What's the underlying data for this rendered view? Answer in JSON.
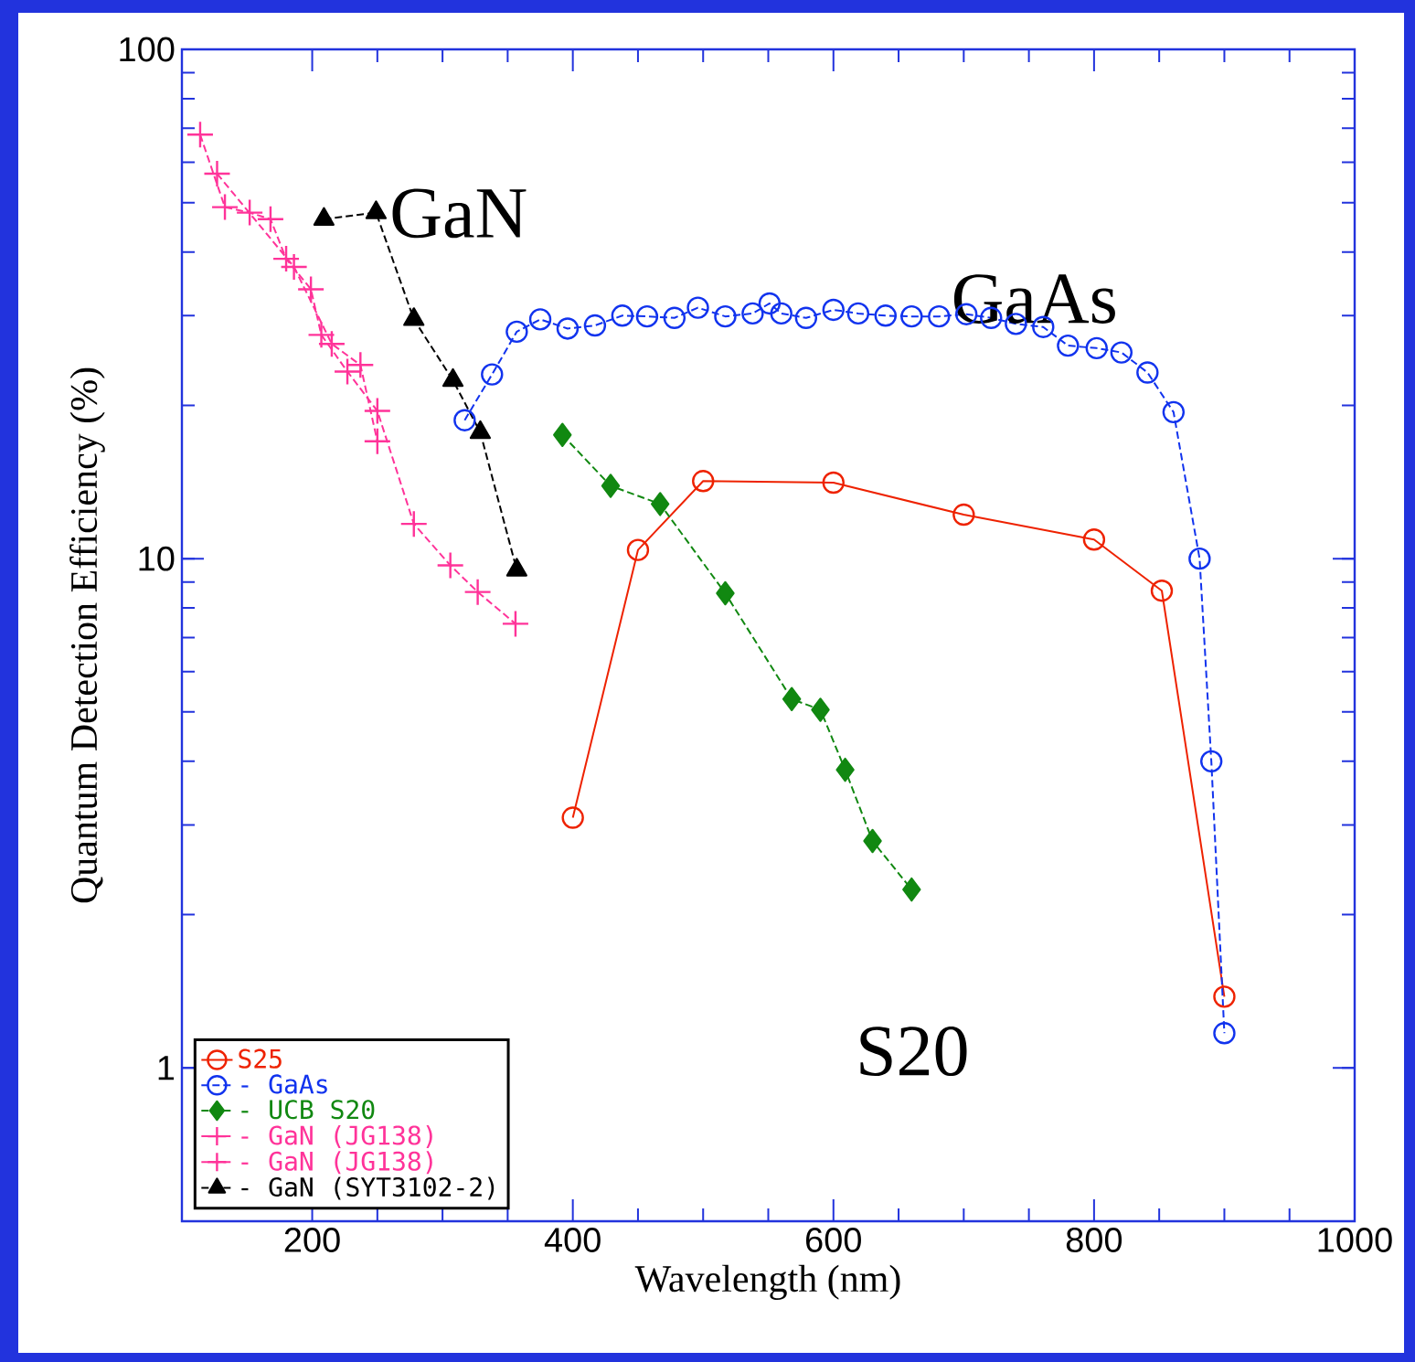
{
  "chart_data": {
    "type": "line",
    "xlabel": "Wavelength (nm)",
    "ylabel": "Quantum Detection Efficiency (%)",
    "log": "y",
    "xlim": [
      100,
      1000
    ],
    "ylim": [
      0.5,
      100
    ],
    "xticks": [
      200,
      400,
      600,
      800,
      1000
    ],
    "yticks": [
      1,
      10,
      100
    ],
    "legend": "bottom left",
    "series": [
      {
        "name": "S25",
        "color": "#ee2200",
        "marker": "circle",
        "line_style": "solid",
        "x": [
          400,
          450,
          500,
          600,
          700,
          800,
          852,
          900
        ],
        "values": [
          3.1,
          10.4,
          14.2,
          14.1,
          12.2,
          10.9,
          8.65,
          1.38
        ]
      },
      {
        "name": "- GaAs",
        "color": "#1133ee",
        "marker": "circle",
        "line_style": "dashed",
        "x": [
          317,
          338,
          357,
          375,
          396,
          417,
          438,
          457,
          478,
          496,
          517,
          538,
          551,
          560,
          579,
          600,
          619,
          640,
          660,
          681,
          702,
          721,
          740,
          761,
          780,
          802,
          821,
          841,
          861,
          881,
          890,
          900
        ],
        "values": [
          18.7,
          23,
          27.9,
          29.5,
          28.3,
          28.7,
          30,
          29.9,
          29.7,
          31.1,
          29.9,
          30.3,
          31.7,
          30.3,
          29.7,
          30.8,
          30.3,
          30,
          29.9,
          29.9,
          30.2,
          29.7,
          28.9,
          28.5,
          26.2,
          25.9,
          25.4,
          23.2,
          19.4,
          10,
          4.0,
          1.17
        ]
      },
      {
        "name": "- UCB S20",
        "color": "#118811",
        "marker": "diamond",
        "line_style": "dashed",
        "x": [
          392,
          429,
          467,
          517,
          568,
          590,
          609,
          630,
          660
        ],
        "values": [
          17.5,
          13.9,
          12.8,
          8.55,
          5.3,
          5.05,
          3.85,
          2.79,
          2.24
        ]
      },
      {
        "name": "- GaN (JG138)",
        "color": "#ff3399",
        "marker": "cross",
        "line_style": "dashed",
        "x": [
          114,
          133,
          152,
          168,
          180,
          199,
          207,
          227,
          250,
          278,
          306,
          327,
          356
        ],
        "values": [
          68,
          49,
          47.8,
          46.4,
          38.8,
          33.8,
          27.5,
          23.3,
          19.5,
          11.7,
          9.7,
          8.6,
          7.45
        ]
      },
      {
        "name": "- GaN (JG138)",
        "color": "#ff3399",
        "marker": "cross",
        "line_style": "dashed",
        "x": [
          127,
          186,
          215,
          237,
          250
        ],
        "values": [
          57,
          37.4,
          26.4,
          24,
          17
        ]
      },
      {
        "name": "- GaN (SYT3102-2)",
        "color": "#000000",
        "marker": "triangle",
        "line_style": "dashed",
        "x": [
          209,
          249,
          278,
          308,
          329,
          357
        ],
        "values": [
          46.4,
          47.8,
          29.5,
          22.4,
          17.7,
          9.5
        ]
      }
    ],
    "annotations": [
      "GaN",
      "GaAs",
      "S20"
    ]
  }
}
